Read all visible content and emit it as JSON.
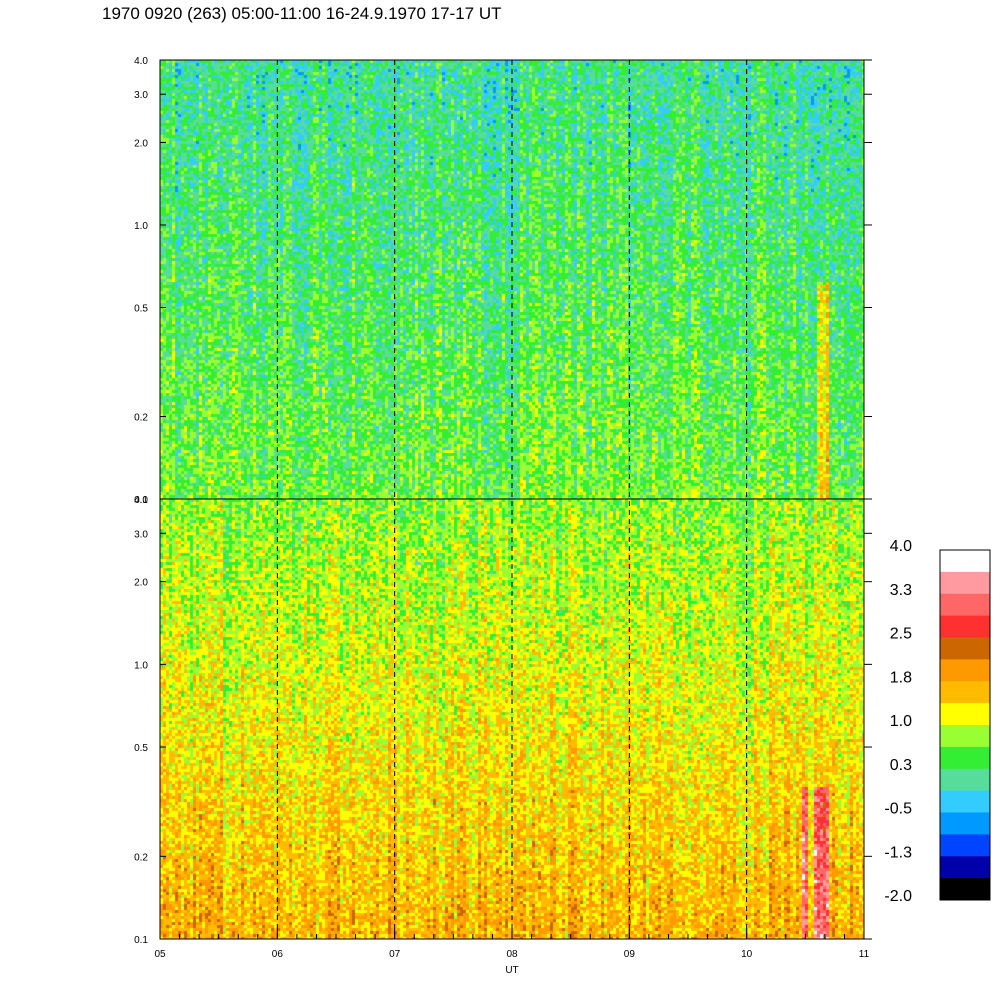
{
  "title": "1970 0920 (263) 05:00-11:00 16-24.9.1970  17-17 UT",
  "chart_data": {
    "type": "heatmap",
    "x_axis": {
      "label": "UT",
      "range": [
        5,
        11
      ],
      "tick_labels": [
        "05",
        "06",
        "07",
        "08",
        "09",
        "10",
        "11"
      ],
      "tick_values": [
        5,
        6,
        7,
        8,
        9,
        10,
        11
      ],
      "dashed_gridlines_at": [
        6,
        7,
        8,
        9,
        10
      ]
    },
    "panels": [
      {
        "id": "upper",
        "y_scale": "log",
        "y_range": [
          0.1,
          4.0
        ],
        "y_tick_labels": [
          "0.1",
          "0.2",
          "0.5",
          "1.0",
          "2.0",
          "3.0",
          "4.0"
        ],
        "y_tick_values": [
          0.1,
          0.2,
          0.5,
          1.0,
          2.0,
          3.0,
          4.0
        ],
        "dominant_level_range": [
          -0.5,
          1.0
        ]
      },
      {
        "id": "lower",
        "y_scale": "log",
        "y_range": [
          0.1,
          4.0
        ],
        "y_tick_labels": [
          "0.1",
          "0.2",
          "0.5",
          "1.0",
          "2.0",
          "3.0",
          "4.0"
        ],
        "y_tick_values": [
          0.1,
          0.2,
          0.5,
          1.0,
          2.0,
          3.0,
          4.0
        ],
        "dominant_level_range": [
          0.3,
          2.5
        ]
      }
    ],
    "colorbar": {
      "tick_labels": [
        "4.0",
        "3.3",
        "2.5",
        "1.8",
        "1.0",
        "0.3",
        "-0.5",
        "-1.3",
        "-2.0"
      ],
      "tick_values": [
        4.0,
        3.3,
        2.5,
        1.8,
        1.0,
        0.3,
        -0.5,
        -1.3,
        -2.0
      ],
      "colors_top_to_bottom": [
        "#ffffff",
        "#ff9aa0",
        "#ff6666",
        "#ff3030",
        "#cc6600",
        "#ff9900",
        "#ffbb00",
        "#ffff00",
        "#99ff33",
        "#33ee33",
        "#55dd99",
        "#33ccff",
        "#0099ff",
        "#0044ff",
        "#0000aa",
        "#000000"
      ]
    }
  }
}
